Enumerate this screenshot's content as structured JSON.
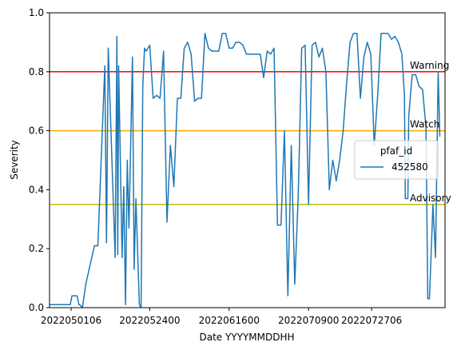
{
  "chart_data": {
    "type": "line",
    "xlabel": "Date YYYYMMDDHH",
    "ylabel": "Severity",
    "ylim": [
      0,
      1
    ],
    "xlim": [
      "2022042500",
      "2022081712"
    ],
    "x_ticks": [
      "2022050106",
      "2022052400",
      "2022061600",
      "2022070900",
      "2022072706"
    ],
    "y_ticks": [
      "0.0",
      "0.2",
      "0.4",
      "0.6",
      "0.8",
      "1.0"
    ],
    "grid": false,
    "legend": {
      "title": "pfaf_id",
      "placement": "right",
      "entries": [
        "452580"
      ]
    },
    "thresholds": [
      {
        "label": "Warning",
        "value": 0.8,
        "color": "#ff0000"
      },
      {
        "label": "Watch",
        "value": 0.6,
        "color": "#ffa500"
      },
      {
        "label": "Advisory",
        "value": 0.35,
        "color": "#bfbf00"
      }
    ],
    "series": [
      {
        "name": "452580",
        "color": "#1f77b4",
        "x": [
          "2022042500",
          "2022050100",
          "2022050112",
          "2022050300",
          "2022050312",
          "2022050318",
          "2022050412",
          "2022050512",
          "2022050800",
          "2022050900",
          "2022051100",
          "2022051112",
          "2022051200",
          "2022051400",
          "2022051412",
          "2022051418",
          "2022051500",
          "2022051600",
          "2022051612",
          "2022051700",
          "2022051712",
          "2022051800",
          "2022051900",
          "2022051912",
          "2022052000",
          "2022052100",
          "2022052112",
          "2022052200",
          "2022052212",
          "2022052300",
          "2022052400",
          "2022052500",
          "2022052600",
          "2022052700",
          "2022052800",
          "2022052900",
          "2022053000",
          "2022053100",
          "2022060100",
          "2022060200",
          "2022060300",
          "2022060400",
          "2022060500",
          "2022060600",
          "2022060700",
          "2022060800",
          "2022060900",
          "2022061000",
          "2022061100",
          "2022061200",
          "2022061300",
          "2022061400",
          "2022061500",
          "2022061600",
          "2022061700",
          "2022061800",
          "2022061900",
          "2022062000",
          "2022062100",
          "2022062200",
          "2022062300",
          "2022062400",
          "2022062500",
          "2022062600",
          "2022062700",
          "2022062800",
          "2022062900",
          "2022063000",
          "2022070100",
          "2022070200",
          "2022070300",
          "2022070400",
          "2022070500",
          "2022070600",
          "2022070700",
          "2022070800",
          "2022070900",
          "2022071000",
          "2022071100",
          "2022071200",
          "2022071300",
          "2022071400",
          "2022071500",
          "2022071600",
          "2022071700",
          "2022071800",
          "2022071900",
          "2022072000",
          "2022072100",
          "2022072200",
          "2022072300",
          "2022072400",
          "2022072500",
          "2022072600",
          "2022072700",
          "2022072800",
          "2022072900",
          "2022073000",
          "2022073100",
          "2022080100"
        ],
        "y": [
          0.01,
          0.01,
          0.04,
          0.04,
          0.01,
          0.01,
          0.0,
          0.08,
          0.21,
          0.21,
          0.82,
          0.22,
          0.88,
          0.17,
          0.92,
          0.18,
          0.82,
          0.17,
          0.41,
          0.01,
          0.5,
          0.27,
          0.85,
          0.13,
          0.37,
          0.01,
          0.0,
          0.75,
          0.88,
          0.87,
          0.89,
          0.71,
          0.72,
          0.71,
          0.87,
          0.29,
          0.55,
          0.41,
          0.71,
          0.71,
          0.88,
          0.9,
          0.86,
          0.7,
          0.71,
          0.71,
          0.93,
          0.88,
          0.87,
          0.87,
          0.87,
          0.93,
          0.93,
          0.88,
          0.88,
          0.9,
          0.9,
          0.89,
          0.86,
          0.86,
          0.86,
          0.86,
          0.86,
          0.78,
          0.87,
          0.86,
          0.88,
          0.28,
          0.28,
          0.6,
          0.04,
          0.55,
          0.08,
          0.38,
          0.88,
          0.89,
          0.35,
          0.89,
          0.9,
          0.85,
          0.88,
          0.8,
          0.4,
          0.5,
          0.43,
          0.5,
          0.6,
          0.76,
          0.9,
          0.93,
          0.93,
          0.71,
          0.85,
          0.9,
          0.86,
          0.55,
          0.72,
          0.93,
          0.93,
          0.93
        ],
        "note_continuation": true
      }
    ]
  }
}
